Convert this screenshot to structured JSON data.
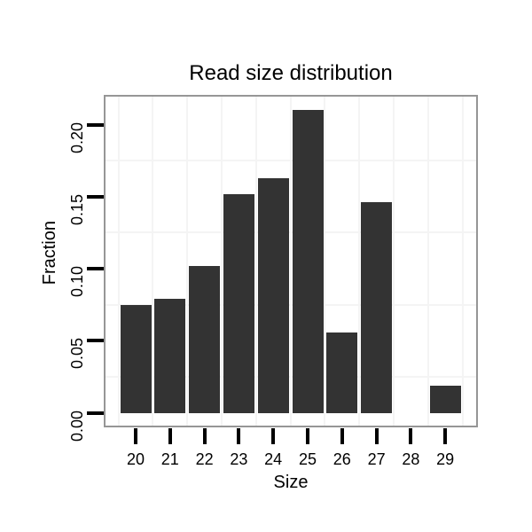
{
  "chart_data": {
    "type": "bar",
    "title": "Read size distribution",
    "xlabel": "Size",
    "ylabel": "Fraction",
    "categories": [
      "20",
      "21",
      "22",
      "23",
      "24",
      "25",
      "26",
      "27",
      "28",
      "29"
    ],
    "values": [
      0.075,
      0.079,
      0.102,
      0.152,
      0.163,
      0.21,
      0.056,
      0.146,
      0.0,
      0.019
    ],
    "yticks": [
      0.0,
      0.05,
      0.1,
      0.15,
      0.2
    ],
    "ytick_labels": [
      "0.00",
      "0.05",
      "0.10",
      "0.15",
      "0.20"
    ],
    "ylim": [
      -0.009,
      0.22
    ],
    "legend": "none",
    "grid": {
      "major": "hidden",
      "minor_y_values": [
        0.025,
        0.075,
        0.125,
        0.175
      ],
      "minor_x": "between-categories"
    },
    "colors": {
      "bar": "#333333",
      "panel_border": "#969696",
      "minor_grid": "#f4f4f4",
      "tick": "#000000",
      "text": "#000000"
    }
  }
}
